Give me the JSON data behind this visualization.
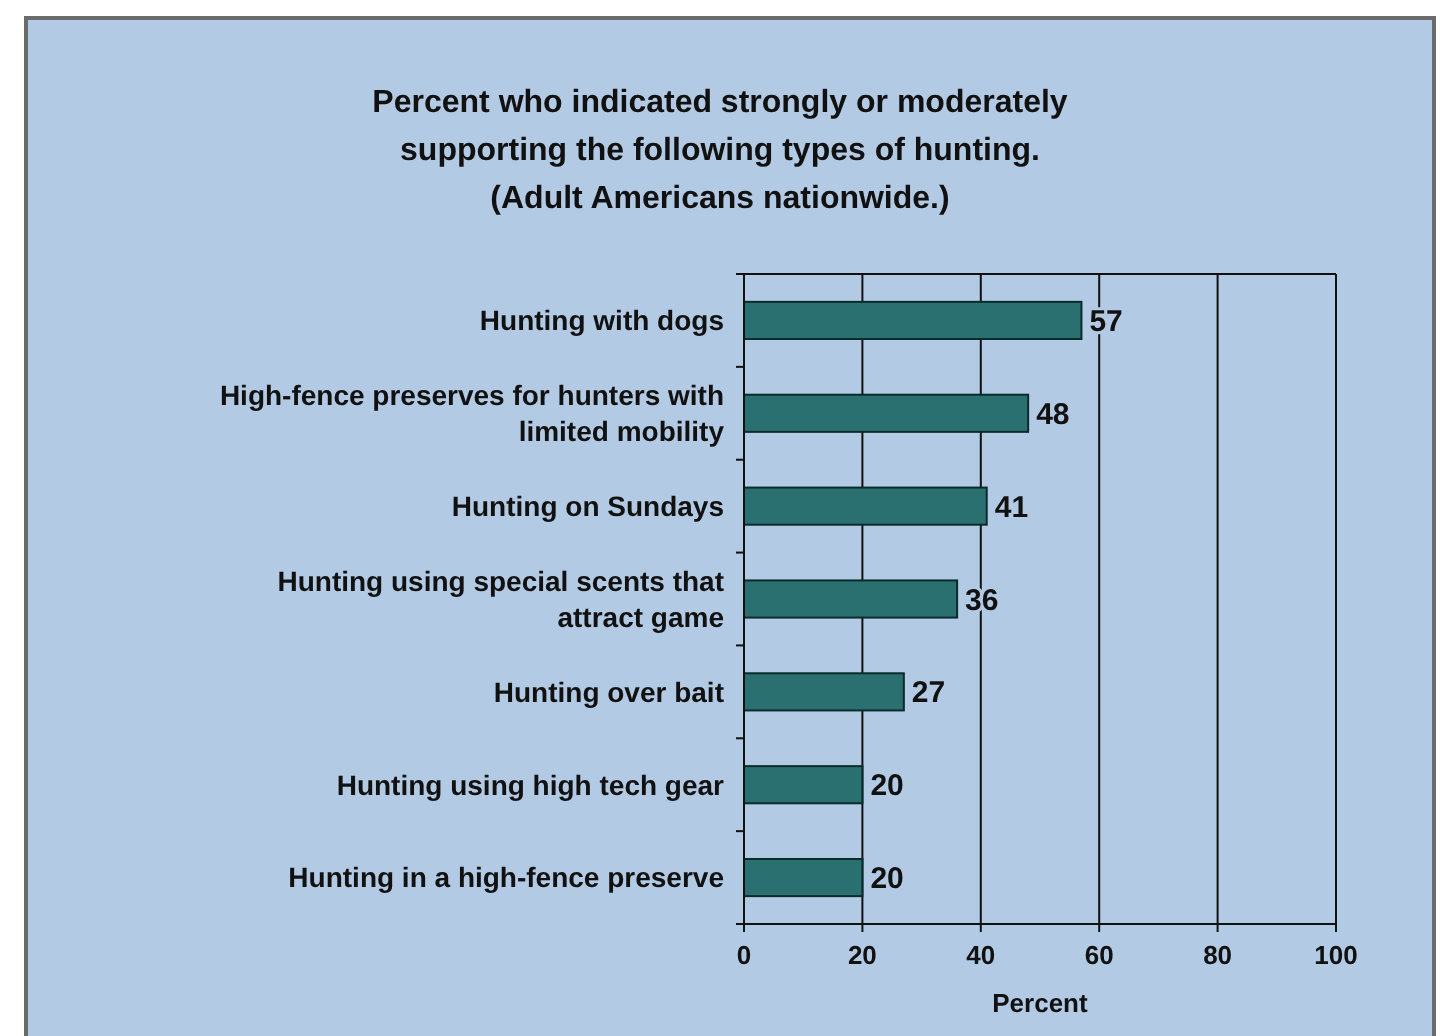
{
  "chart_data": {
    "type": "bar",
    "orientation": "horizontal",
    "title": "Percent who indicated strongly or moderately supporting the following types of hunting. (Adult Americans nationwide.)",
    "xlabel": "Percent",
    "categories": [
      "Hunting with dogs",
      "High-fence preserves for hunters with limited mobility",
      "Hunting on Sundays",
      "Hunting using special scents that attract game",
      "Hunting over bait",
      "Hunting using high tech gear",
      "Hunting in a high-fence preserve"
    ],
    "values": [
      57,
      48,
      41,
      36,
      27,
      20,
      20
    ],
    "color": "#2b7070",
    "data_labels": true,
    "xlim": [
      0,
      100
    ],
    "xticks": [
      0,
      20,
      40,
      60,
      80,
      100
    ],
    "grid": "x"
  }
}
